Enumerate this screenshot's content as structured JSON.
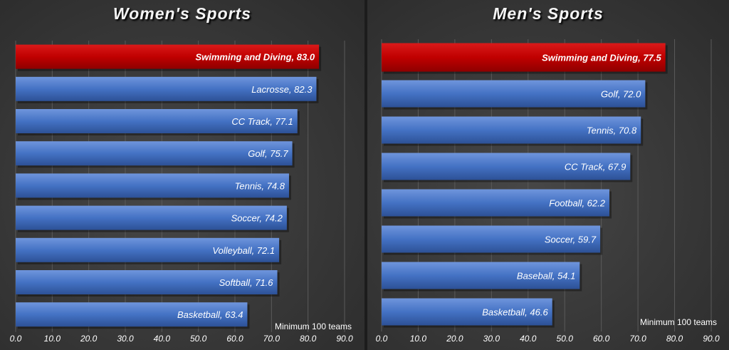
{
  "colors": {
    "highlight": "#c00000",
    "bar": "#4472c4",
    "grid": "#5a5a5a",
    "text": "#ffffff"
  },
  "chart_data": [
    {
      "type": "bar",
      "orientation": "horizontal",
      "title": "Women's Sports",
      "note": "Minimum 100 teams",
      "categories": [
        "Swimming and Diving",
        "Lacrosse",
        "CC Track",
        "Golf",
        "Tennis",
        "Soccer",
        "Volleyball",
        "Softball",
        "Basketball"
      ],
      "values": [
        83.0,
        82.3,
        77.1,
        75.7,
        74.8,
        74.2,
        72.1,
        71.6,
        63.4
      ],
      "bar_labels": [
        "Swimming and Diving, 83.0",
        "Lacrosse, 82.3",
        "CC Track, 77.1",
        "Golf, 75.7",
        "Tennis, 74.8",
        "Soccer, 74.2",
        "Volleyball, 72.1",
        "Softball, 71.6",
        "Basketball, 63.4"
      ],
      "highlight_index": 0,
      "xlim": [
        0,
        90
      ],
      "xticks": [
        "0.0",
        "10.0",
        "20.0",
        "30.0",
        "40.0",
        "50.0",
        "60.0",
        "70.0",
        "80.0",
        "90.0"
      ],
      "grid": true
    },
    {
      "type": "bar",
      "orientation": "horizontal",
      "title": "Men's Sports",
      "note": "Minimum 100 teams",
      "categories": [
        "Swimming and Diving",
        "Golf",
        "Tennis",
        "CC Track",
        "Football",
        "Soccer",
        "Baseball",
        "Basketball"
      ],
      "values": [
        77.5,
        72.0,
        70.8,
        67.9,
        62.2,
        59.7,
        54.1,
        46.6
      ],
      "bar_labels": [
        "Swimming and Diving, 77.5",
        "Golf, 72.0",
        "Tennis, 70.8",
        "CC Track, 67.9",
        "Football, 62.2",
        "Soccer, 59.7",
        "Baseball, 54.1",
        "Basketball, 46.6"
      ],
      "highlight_index": 0,
      "xlim": [
        0,
        90
      ],
      "xticks": [
        "0.0",
        "10.0",
        "20.0",
        "30.0",
        "40.0",
        "50.0",
        "60.0",
        "70.0",
        "80.0",
        "90.0"
      ],
      "grid": true
    }
  ]
}
